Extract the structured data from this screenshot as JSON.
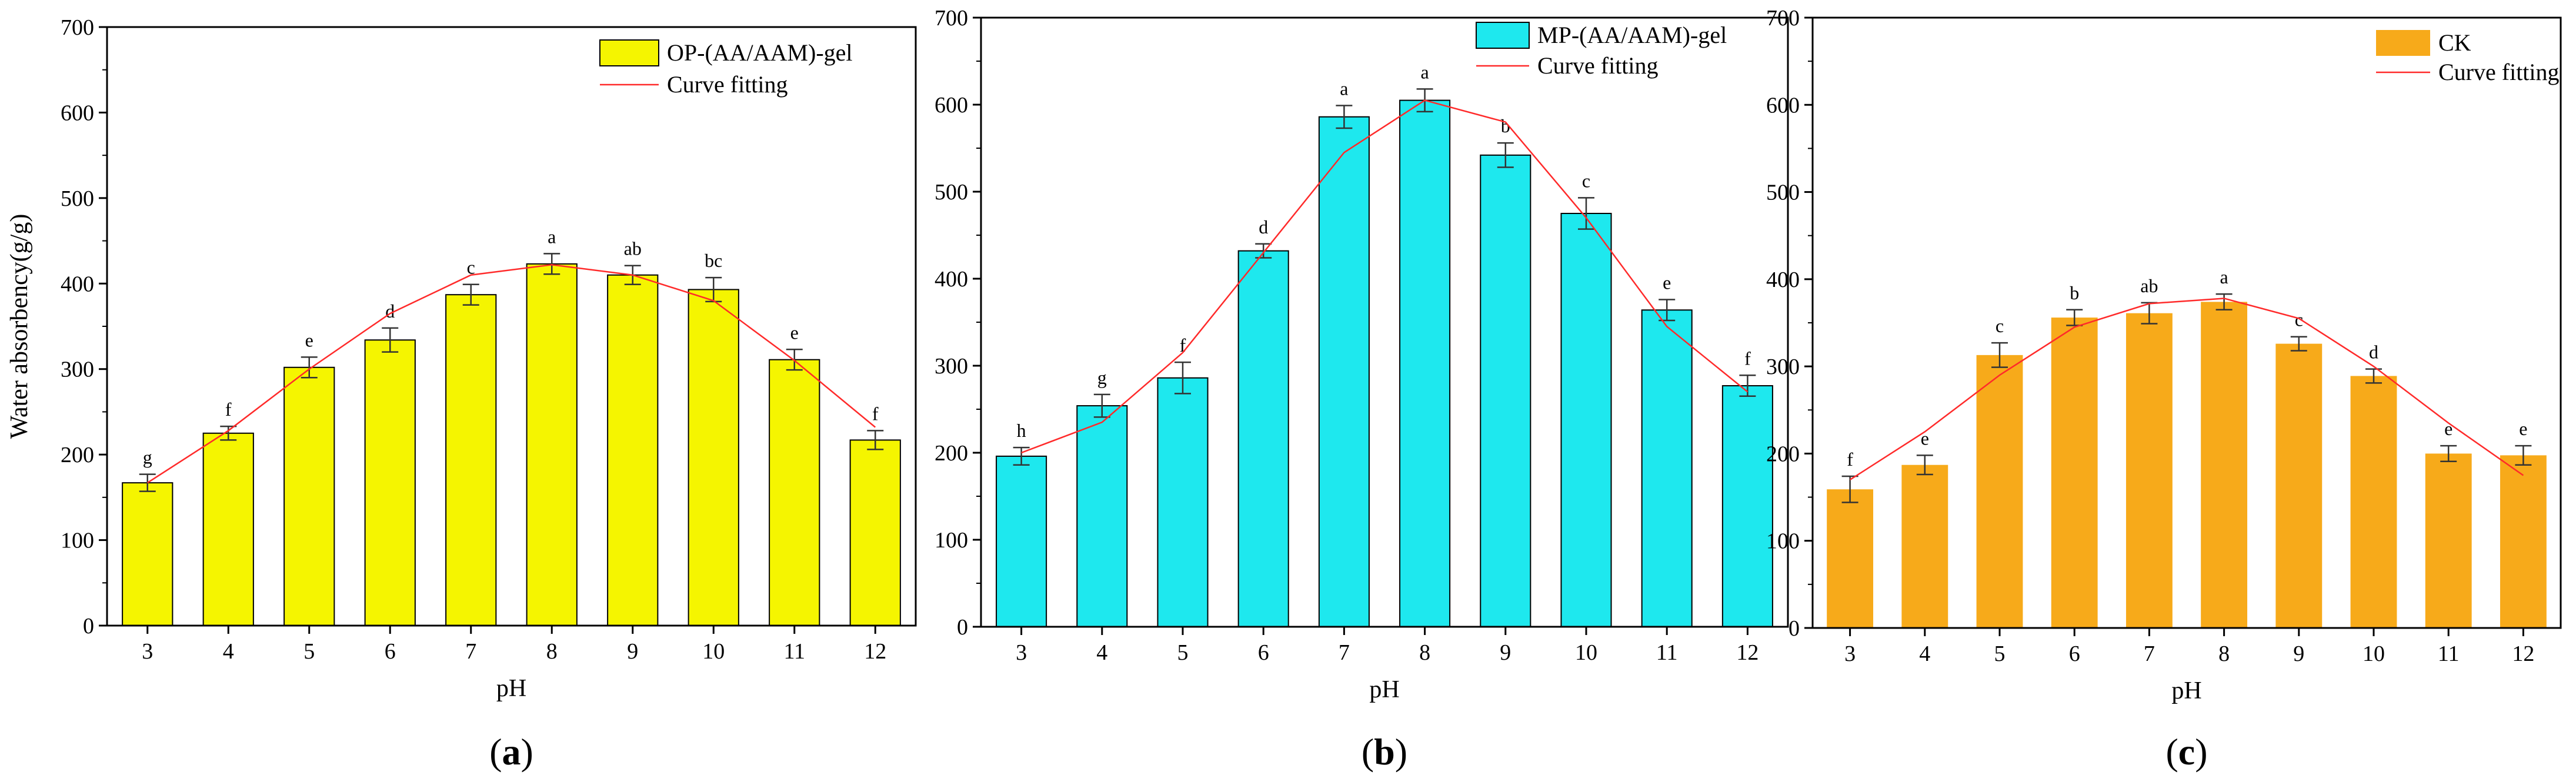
{
  "chart_data": [
    {
      "type": "bar",
      "panel_label": "a",
      "xlabel": "pH",
      "ylabel": "Water absorbency(g/g)",
      "ylim": [
        0,
        700
      ],
      "yticks": [
        0,
        100,
        200,
        300,
        400,
        500,
        600,
        700
      ],
      "categories": [
        "3",
        "4",
        "5",
        "6",
        "7",
        "8",
        "9",
        "10",
        "11",
        "12"
      ],
      "series": [
        {
          "name": "OP-(AA/AAM)-gel",
          "values": [
            167,
            225,
            302,
            334,
            387,
            423,
            410,
            393,
            311,
            217
          ],
          "errors": [
            10,
            8,
            12,
            14,
            12,
            12,
            11,
            14,
            12,
            11
          ],
          "letters": [
            "g",
            "f",
            "e",
            "d",
            "c",
            "a",
            "ab",
            "bc",
            "e",
            "f"
          ]
        }
      ],
      "fit": {
        "name": "Curve fitting",
        "values": [
          167,
          228,
          300,
          365,
          410,
          422,
          410,
          380,
          310,
          232
        ]
      },
      "colors": {
        "bar": "#f5f500",
        "fit": "#ff2a2a"
      },
      "legend": {
        "position": "top-right",
        "items": [
          "OP-(AA/AAM)-gel",
          "Curve fitting"
        ]
      }
    },
    {
      "type": "bar",
      "panel_label": "b",
      "xlabel": "pH",
      "ylabel": "",
      "ylim": [
        0,
        700
      ],
      "yticks": [
        0,
        100,
        200,
        300,
        400,
        500,
        600,
        700
      ],
      "categories": [
        "3",
        "4",
        "5",
        "6",
        "7",
        "8",
        "9",
        "10",
        "11",
        "12"
      ],
      "series": [
        {
          "name": "MP-(AA/AAM)-gel",
          "values": [
            196,
            254,
            286,
            432,
            586,
            605,
            542,
            475,
            364,
            277
          ],
          "errors": [
            10,
            13,
            18,
            8,
            13,
            13,
            14,
            18,
            12,
            12
          ],
          "letters": [
            "h",
            "g",
            "f",
            "d",
            "a",
            "a",
            "b",
            "c",
            "e",
            "f"
          ]
        }
      ],
      "fit": {
        "name": "Curve fitting",
        "values": [
          200,
          235,
          315,
          430,
          545,
          605,
          580,
          470,
          345,
          270
        ]
      },
      "colors": {
        "bar": "#1ee8ee",
        "fit": "#ff2a2a"
      },
      "legend": {
        "position": "top-right",
        "items": [
          "MP-(AA/AAM)-gel",
          "Curve fitting"
        ]
      }
    },
    {
      "type": "bar",
      "panel_label": "c",
      "xlabel": "pH",
      "ylabel": "",
      "ylim": [
        0,
        700
      ],
      "yticks": [
        0,
        100,
        200,
        300,
        400,
        500,
        600,
        700
      ],
      "categories": [
        "3",
        "4",
        "5",
        "6",
        "7",
        "8",
        "9",
        "10",
        "11",
        "12"
      ],
      "series": [
        {
          "name": "CK",
          "values": [
            159,
            187,
            313,
            356,
            361,
            374,
            326,
            289,
            200,
            198
          ],
          "errors": [
            15,
            11,
            14,
            9,
            12,
            9,
            8,
            8,
            9,
            11
          ],
          "letters": [
            "f",
            "e",
            "c",
            "b",
            "ab",
            "a",
            "c",
            "d",
            "e",
            "e"
          ]
        }
      ],
      "fit": {
        "name": "Curve fitting",
        "values": [
          170,
          225,
          290,
          345,
          372,
          378,
          355,
          300,
          235,
          175
        ]
      },
      "colors": {
        "bar": "#f7aa1a",
        "fit": "#ff2a2a"
      },
      "legend": {
        "position": "top-right",
        "items": [
          "CK",
          "Curve fitting"
        ]
      }
    }
  ]
}
